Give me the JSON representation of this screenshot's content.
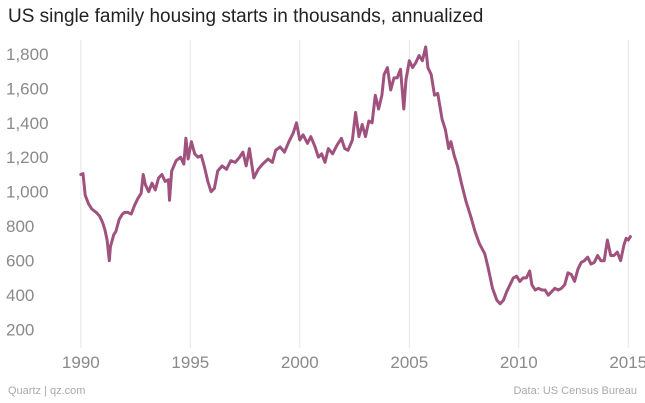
{
  "title": "US single family housing starts in thousands, annualized",
  "footer": {
    "source_left": "Quartz | qz.com",
    "source_right": "Data: US Census Bureau"
  },
  "colors": {
    "line": "#a0527f",
    "grid": "#e6e6e6",
    "tick_text": "#8a8a8a"
  },
  "chart_data": {
    "type": "line",
    "title": "US single family housing starts in thousands, annualized",
    "xlabel": "",
    "ylabel": "",
    "xlim": [
      1988.5,
      2015.4
    ],
    "ylim": [
      140,
      1880
    ],
    "grid": {
      "x": true,
      "y": false
    },
    "legend": "none",
    "x_ticks": [
      {
        "value": 1990,
        "label": "1990"
      },
      {
        "value": 1995,
        "label": "1995"
      },
      {
        "value": 2000,
        "label": "2000"
      },
      {
        "value": 2005,
        "label": "2005"
      },
      {
        "value": 2010,
        "label": "2010"
      },
      {
        "value": 2015,
        "label": "2015"
      }
    ],
    "y_ticks": [
      {
        "value": 1800,
        "label": "1,800"
      },
      {
        "value": 1600,
        "label": "1,600"
      },
      {
        "value": 1400,
        "label": "1,400"
      },
      {
        "value": 1200,
        "label": "1,200"
      },
      {
        "value": 1000,
        "label": "1,000"
      },
      {
        "value": 800,
        "label": "800"
      },
      {
        "value": 600,
        "label": "600"
      },
      {
        "value": 400,
        "label": "400"
      },
      {
        "value": 200,
        "label": "200"
      }
    ],
    "series": [
      {
        "values": [
          [
            1990.0,
            1100
          ],
          [
            1990.1,
            1105
          ],
          [
            1990.2,
            980
          ],
          [
            1990.35,
            930
          ],
          [
            1990.5,
            900
          ],
          [
            1990.7,
            880
          ],
          [
            1990.85,
            860
          ],
          [
            1991.0,
            820
          ],
          [
            1991.1,
            780
          ],
          [
            1991.2,
            720
          ],
          [
            1991.3,
            600
          ],
          [
            1991.35,
            680
          ],
          [
            1991.5,
            750
          ],
          [
            1991.6,
            770
          ],
          [
            1991.75,
            840
          ],
          [
            1991.9,
            870
          ],
          [
            1992.0,
            880
          ],
          [
            1992.15,
            880
          ],
          [
            1992.3,
            870
          ],
          [
            1992.45,
            920
          ],
          [
            1992.6,
            960
          ],
          [
            1992.75,
            990
          ],
          [
            1992.85,
            1100
          ],
          [
            1992.95,
            1040
          ],
          [
            1993.1,
            1000
          ],
          [
            1993.25,
            1050
          ],
          [
            1993.4,
            1010
          ],
          [
            1993.55,
            1080
          ],
          [
            1993.7,
            1100
          ],
          [
            1993.85,
            1060
          ],
          [
            1994.0,
            1070
          ],
          [
            1994.05,
            950
          ],
          [
            1994.15,
            1120
          ],
          [
            1994.35,
            1180
          ],
          [
            1994.55,
            1200
          ],
          [
            1994.7,
            1160
          ],
          [
            1994.8,
            1310
          ],
          [
            1994.9,
            1190
          ],
          [
            1995.05,
            1290
          ],
          [
            1995.2,
            1220
          ],
          [
            1995.35,
            1200
          ],
          [
            1995.5,
            1210
          ],
          [
            1995.65,
            1140
          ],
          [
            1995.8,
            1060
          ],
          [
            1995.95,
            1000
          ],
          [
            1996.1,
            1020
          ],
          [
            1996.25,
            1120
          ],
          [
            1996.45,
            1150
          ],
          [
            1996.65,
            1130
          ],
          [
            1996.85,
            1180
          ],
          [
            1997.05,
            1170
          ],
          [
            1997.25,
            1200
          ],
          [
            1997.4,
            1230
          ],
          [
            1997.55,
            1150
          ],
          [
            1997.7,
            1250
          ],
          [
            1997.9,
            1080
          ],
          [
            1998.1,
            1130
          ],
          [
            1998.3,
            1160
          ],
          [
            1998.55,
            1190
          ],
          [
            1998.75,
            1170
          ],
          [
            1998.9,
            1240
          ],
          [
            1999.1,
            1260
          ],
          [
            1999.3,
            1230
          ],
          [
            1999.5,
            1290
          ],
          [
            1999.7,
            1340
          ],
          [
            1999.85,
            1400
          ],
          [
            2000.0,
            1300
          ],
          [
            2000.15,
            1330
          ],
          [
            2000.35,
            1280
          ],
          [
            2000.5,
            1320
          ],
          [
            2000.7,
            1260
          ],
          [
            2000.85,
            1200
          ],
          [
            2001.0,
            1220
          ],
          [
            2001.15,
            1170
          ],
          [
            2001.3,
            1250
          ],
          [
            2001.5,
            1220
          ],
          [
            2001.7,
            1270
          ],
          [
            2001.9,
            1310
          ],
          [
            2002.05,
            1250
          ],
          [
            2002.2,
            1240
          ],
          [
            2002.4,
            1300
          ],
          [
            2002.55,
            1460
          ],
          [
            2002.7,
            1320
          ],
          [
            2002.85,
            1390
          ],
          [
            2003.0,
            1320
          ],
          [
            2003.15,
            1410
          ],
          [
            2003.3,
            1400
          ],
          [
            2003.45,
            1560
          ],
          [
            2003.6,
            1480
          ],
          [
            2003.75,
            1560
          ],
          [
            2003.85,
            1680
          ],
          [
            2004.0,
            1720
          ],
          [
            2004.15,
            1590
          ],
          [
            2004.3,
            1660
          ],
          [
            2004.45,
            1660
          ],
          [
            2004.6,
            1710
          ],
          [
            2004.75,
            1480
          ],
          [
            2004.85,
            1650
          ],
          [
            2005.0,
            1760
          ],
          [
            2005.15,
            1720
          ],
          [
            2005.3,
            1750
          ],
          [
            2005.45,
            1790
          ],
          [
            2005.6,
            1760
          ],
          [
            2005.75,
            1840
          ],
          [
            2005.85,
            1720
          ],
          [
            2006.0,
            1680
          ],
          [
            2006.15,
            1560
          ],
          [
            2006.3,
            1570
          ],
          [
            2006.5,
            1420
          ],
          [
            2006.65,
            1360
          ],
          [
            2006.8,
            1250
          ],
          [
            2006.9,
            1290
          ],
          [
            2007.05,
            1210
          ],
          [
            2007.2,
            1150
          ],
          [
            2007.4,
            1040
          ],
          [
            2007.6,
            940
          ],
          [
            2007.8,
            860
          ],
          [
            2008.0,
            770
          ],
          [
            2008.2,
            700
          ],
          [
            2008.45,
            640
          ],
          [
            2008.6,
            560
          ],
          [
            2008.8,
            440
          ],
          [
            2009.0,
            370
          ],
          [
            2009.15,
            350
          ],
          [
            2009.3,
            370
          ],
          [
            2009.45,
            420
          ],
          [
            2009.6,
            460
          ],
          [
            2009.75,
            500
          ],
          [
            2009.9,
            510
          ],
          [
            2010.05,
            480
          ],
          [
            2010.2,
            500
          ],
          [
            2010.35,
            500
          ],
          [
            2010.5,
            540
          ],
          [
            2010.6,
            460
          ],
          [
            2010.75,
            430
          ],
          [
            2010.9,
            440
          ],
          [
            2011.05,
            430
          ],
          [
            2011.2,
            430
          ],
          [
            2011.35,
            400
          ],
          [
            2011.5,
            420
          ],
          [
            2011.65,
            440
          ],
          [
            2011.8,
            430
          ],
          [
            2011.95,
            440
          ],
          [
            2012.1,
            460
          ],
          [
            2012.25,
            530
          ],
          [
            2012.4,
            520
          ],
          [
            2012.55,
            480
          ],
          [
            2012.7,
            550
          ],
          [
            2012.85,
            590
          ],
          [
            2013.0,
            600
          ],
          [
            2013.15,
            620
          ],
          [
            2013.3,
            580
          ],
          [
            2013.45,
            590
          ],
          [
            2013.6,
            630
          ],
          [
            2013.75,
            600
          ],
          [
            2013.9,
            600
          ],
          [
            2014.05,
            720
          ],
          [
            2014.2,
            630
          ],
          [
            2014.35,
            630
          ],
          [
            2014.5,
            650
          ],
          [
            2014.65,
            600
          ],
          [
            2014.8,
            690
          ],
          [
            2014.9,
            730
          ],
          [
            2015.0,
            720
          ],
          [
            2015.1,
            740
          ]
        ]
      }
    ]
  }
}
